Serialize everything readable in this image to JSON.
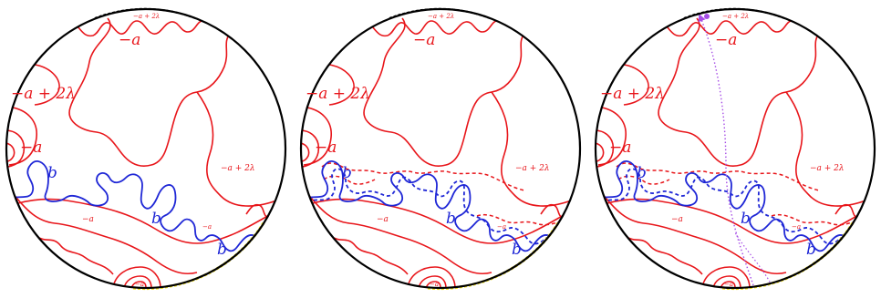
{
  "colors": {
    "circle": "#000000",
    "red_curve": "#e8161b",
    "blue_curve": "#1f27d6",
    "boundary_yellow": "#f2e21a",
    "purple_path": "#a64de6",
    "purple_arrow": "#a64de6"
  },
  "labels": {
    "neg_a": "−a",
    "neg_a_plus_2lambda": "−a + 2λ",
    "b": "b"
  },
  "panels": [
    {
      "id": "panel-1",
      "has_dashed_curves": false,
      "has_purple_path": false
    },
    {
      "id": "panel-2",
      "has_dashed_curves": true,
      "has_purple_path": false
    },
    {
      "id": "panel-3",
      "has_dashed_curves": true,
      "has_purple_path": true
    }
  ]
}
